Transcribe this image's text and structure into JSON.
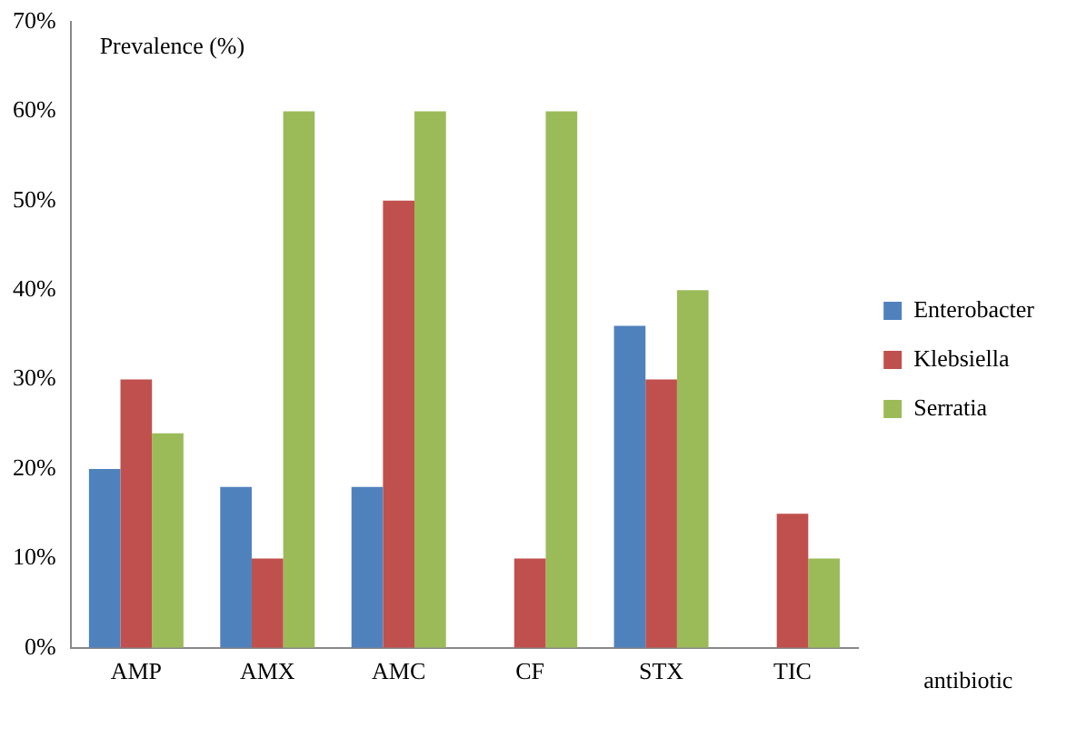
{
  "chart_data": {
    "type": "bar",
    "ylabel": "Prevalence (%)",
    "xlabel": "antibiotic",
    "categories": [
      "AMP",
      "AMX",
      "AMC",
      "CF",
      "STX",
      "TIC"
    ],
    "series": [
      {
        "name": "Enterobacter",
        "color": "#4f81bd",
        "values": [
          20,
          18,
          18,
          null,
          36,
          null
        ]
      },
      {
        "name": "Klebsiella",
        "color": "#c0504d",
        "values": [
          30,
          10,
          50,
          10,
          30,
          15
        ]
      },
      {
        "name": "Serratia",
        "color": "#9bbb59",
        "values": [
          24,
          60,
          60,
          60,
          40,
          10
        ]
      }
    ],
    "ylim": [
      0,
      70
    ],
    "yticks": [
      {
        "value": 0,
        "label": "0%"
      },
      {
        "value": 10,
        "label": "10%"
      },
      {
        "value": 20,
        "label": "20%"
      },
      {
        "value": 30,
        "label": "30%"
      },
      {
        "value": 40,
        "label": "40%"
      },
      {
        "value": 50,
        "label": "50%"
      },
      {
        "value": 60,
        "label": "60%"
      },
      {
        "value": 70,
        "label": "70%"
      }
    ],
    "grid": false,
    "legend": "right"
  }
}
